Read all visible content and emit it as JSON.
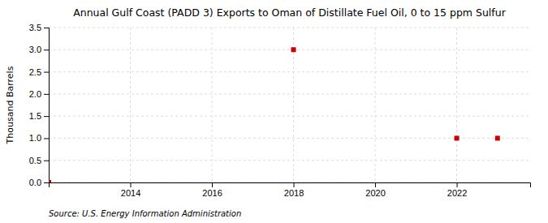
{
  "chart_data": {
    "type": "scatter",
    "title": "Annual Gulf Coast (PADD 3) Exports to Oman of Distillate Fuel Oil, 0 to 15 ppm Sulfur",
    "ylabel": "Thousand Barrels",
    "source": "Source: U.S. Energy Information Administration",
    "x": [
      2012,
      2018,
      2022,
      2023
    ],
    "values": [
      0,
      3,
      1,
      1
    ],
    "color": "#cc0000",
    "marker": "square",
    "xlim": [
      2012.0,
      2023.8
    ],
    "ylim": [
      0.0,
      3.5
    ],
    "xticks": [
      2014,
      2016,
      2018,
      2020,
      2022
    ],
    "yticks": [
      {
        "value": 0.0,
        "label": "0.0"
      },
      {
        "value": 0.5,
        "label": "0.5"
      },
      {
        "value": 1.0,
        "label": "1.0"
      },
      {
        "value": 1.5,
        "label": "1.5"
      },
      {
        "value": 2.0,
        "label": "2.0"
      },
      {
        "value": 2.5,
        "label": "2.5"
      },
      {
        "value": 3.0,
        "label": "3.0"
      },
      {
        "value": 3.5,
        "label": "3.5"
      }
    ],
    "grid": true
  }
}
